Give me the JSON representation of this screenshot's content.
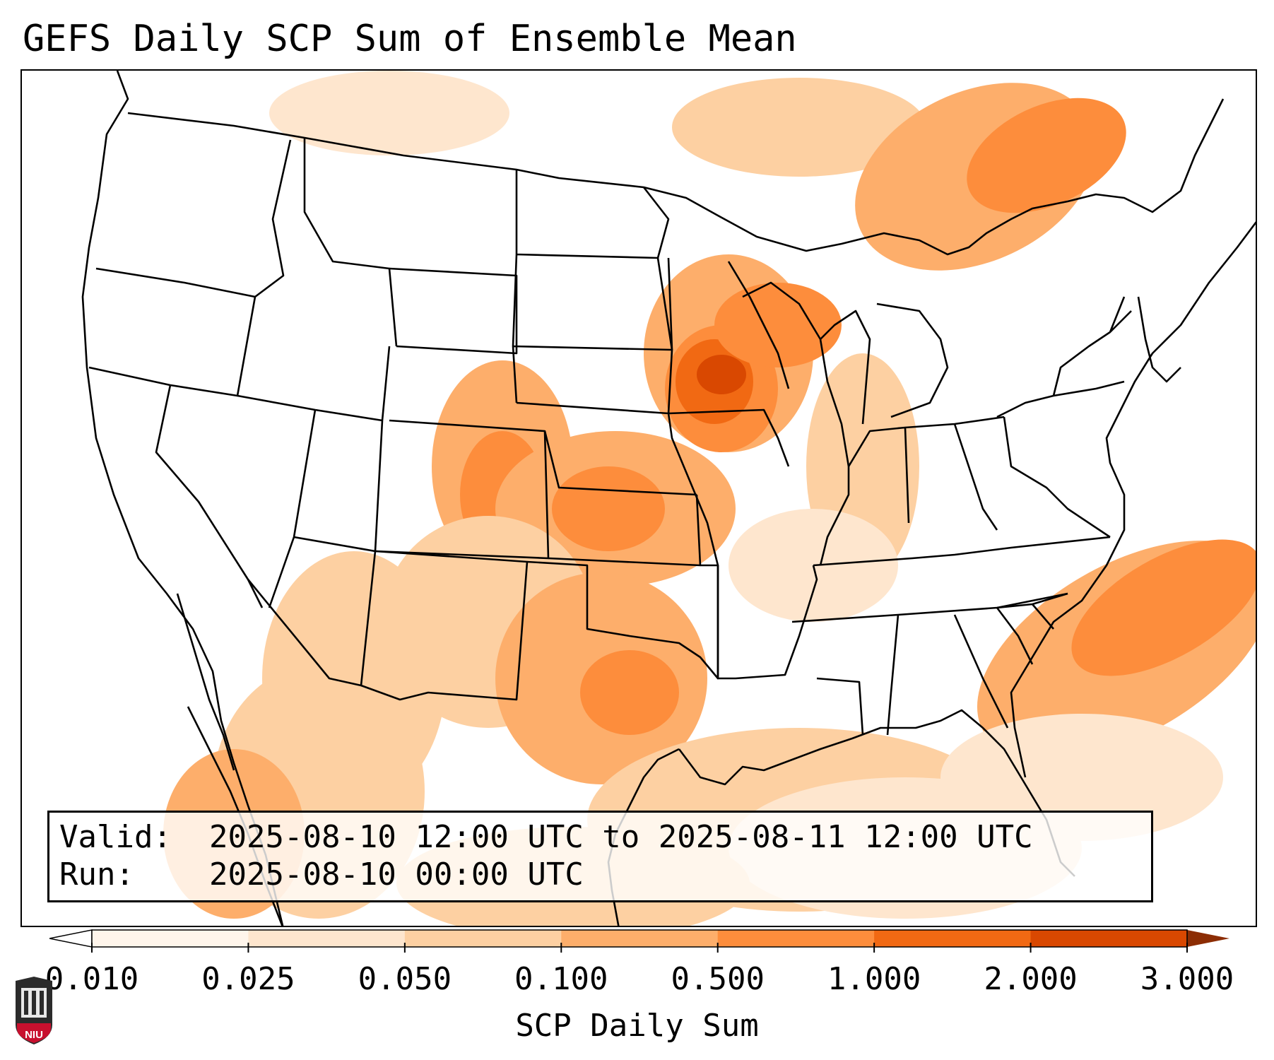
{
  "title": "GEFS Daily SCP Sum of Ensemble Mean",
  "info": {
    "valid_label": "Valid:",
    "valid_value": "2025-08-10 12:00 UTC to 2025-08-11 12:00 UTC",
    "run_label": "Run:",
    "run_value": "2025-08-10 00:00 UTC"
  },
  "colorbar": {
    "label": "SCP Daily Sum",
    "ticks": [
      "0.010",
      "0.025",
      "0.050",
      "0.100",
      "0.500",
      "1.000",
      "2.000",
      "3.000"
    ],
    "colors": [
      "#fff5eb",
      "#fee6ce",
      "#fdd0a2",
      "#fdae6b",
      "#fd8d3c",
      "#f16913",
      "#d94801",
      "#a63603"
    ],
    "under_color": "#ffffff",
    "over_color": "#8c2d04"
  },
  "map": {
    "projection": "Lambert conformal (CONUS)",
    "field": "SCP daily sum (ensemble mean)",
    "max_region": "Iowa / southern Minnesota",
    "max_category": "2.000",
    "secondary_maxima": [
      "Atlantic offshore of the Carolinas",
      "Eastern Colorado",
      "Kansas"
    ]
  },
  "logo": {
    "text": "NIU",
    "icon": "university-shield-icon"
  }
}
